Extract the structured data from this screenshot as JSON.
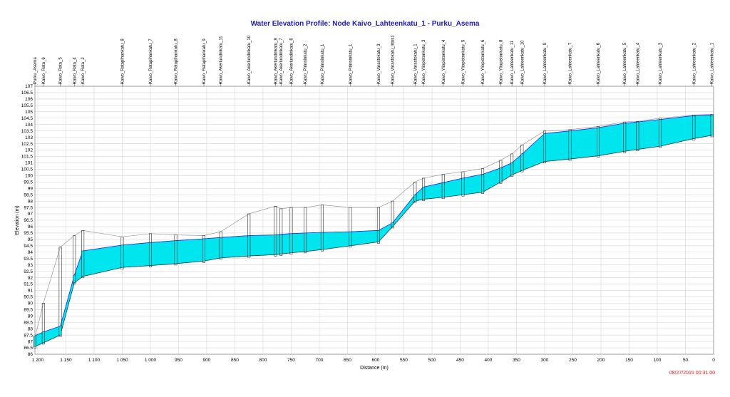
{
  "colors": {
    "title": "#1a1ad0",
    "hgl": "#2a2af0",
    "water": "#00e5ee",
    "grid": "#d6d6d6",
    "ground": "#9a9a9a",
    "stamp": "#e02020"
  },
  "chart_data": {
    "type": "area",
    "title": "Water Elevation Profile:  Node Kaivo_Lahteenkatu_1 - Purku_Asema",
    "xlabel": "Distance (m)",
    "ylabel": "Elevation (m)",
    "xlim": [
      1205,
      0
    ],
    "ylim": [
      86,
      107
    ],
    "x_ticks": [
      1200,
      1150,
      1100,
      1050,
      1000,
      950,
      900,
      850,
      800,
      750,
      700,
      650,
      600,
      550,
      500,
      450,
      400,
      350,
      300,
      250,
      200,
      150,
      100,
      50,
      0
    ],
    "x_tick_labels": [
      "1 200",
      "1 150",
      "1 100",
      "1 050",
      "1 000",
      "950",
      "900",
      "850",
      "800",
      "750",
      "700",
      "650",
      "600",
      "550",
      "500",
      "450",
      "400",
      "350",
      "300",
      "250",
      "200",
      "150",
      "100",
      "50",
      "0"
    ],
    "y_ticks": [
      86,
      86.5,
      87,
      87.5,
      88,
      88.5,
      89,
      89.5,
      90,
      90.5,
      91,
      91.5,
      92,
      92.5,
      93,
      93.5,
      94,
      94.5,
      95,
      95.5,
      96,
      96.5,
      97,
      97.5,
      98,
      98.5,
      99,
      99.5,
      100,
      100.5,
      101,
      101.5,
      102,
      102.5,
      103,
      103.5,
      104,
      104.5,
      105,
      105.5,
      106,
      106.5,
      107
    ],
    "y_tick_labels": [
      "86",
      "86.5",
      "87",
      "87.5",
      "88",
      "88.5",
      "89",
      "89.5",
      "90",
      "90.5",
      "91",
      "91.5",
      "92",
      "92.5",
      "93",
      "93.5",
      "94",
      "94.5",
      "95",
      "95.5",
      "96",
      "96.5",
      "97",
      "97.5",
      "98",
      "98.5",
      "99",
      "99.5",
      "100",
      "100.5",
      "101",
      "101.5",
      "102",
      "102.5",
      "103",
      "103.5",
      "104",
      "104.5",
      "105",
      "105.5",
      "106",
      "106.5",
      "107"
    ],
    "grid": true,
    "nodes": [
      {
        "name": "Purku_Asema",
        "x": 1205,
        "invert": 86.6,
        "ground": 87.3,
        "hgl": 87.45
      },
      {
        "name": "Kaivo_Rata_6",
        "x": 1190,
        "invert": 86.9,
        "ground": 90.0,
        "hgl": 87.75
      },
      {
        "name": "Kaivo_Rata_5",
        "x": 1160,
        "invert": 87.5,
        "ground": 94.4,
        "hgl": 88.2
      },
      {
        "name": "Kaivo_Rata_4",
        "x": 1135,
        "invert": 91.6,
        "ground": 95.3,
        "hgl": 92.2
      },
      {
        "name": "Kaivo_Rata_2",
        "x": 1120,
        "invert": 92.1,
        "ground": 95.7,
        "hgl": 94.1
      },
      {
        "name": "Kaivo_Ratapihankatu_8",
        "x": 1050,
        "invert": 92.8,
        "ground": 95.2,
        "hgl": 94.55
      },
      {
        "name": "Kaivo_Ratapihankatu_7",
        "x": 1000,
        "invert": 92.95,
        "ground": 95.45,
        "hgl": 94.75
      },
      {
        "name": "Kaivo_Ratapihankatu_8",
        "x": 955,
        "invert": 93.1,
        "ground": 95.35,
        "hgl": 94.9
      },
      {
        "name": "Kaivo_Ratapihankatu_9",
        "x": 905,
        "invert": 93.3,
        "ground": 95.3,
        "hgl": 95.05
      },
      {
        "name": "Kaivo_Akerlundinkatu_11",
        "x": 875,
        "invert": 93.55,
        "ground": 95.6,
        "hgl": 95.15
      },
      {
        "name": "Kaivo_Akerlundinkatu_10",
        "x": 825,
        "invert": 93.7,
        "ground": 97.0,
        "hgl": 95.3
      },
      {
        "name": "Kaivo_Akerlundinkatu_8",
        "x": 778,
        "invert": 93.8,
        "ground": 97.6,
        "hgl": 95.35
      },
      {
        "name": "Kaivo_Akerlundinkatu_7",
        "x": 768,
        "invert": 93.85,
        "ground": 97.4,
        "hgl": 95.4
      },
      {
        "name": "Kaivo_Akerlundinkatu_6",
        "x": 750,
        "invert": 93.95,
        "ground": 97.5,
        "hgl": 95.45
      },
      {
        "name": "Kaivo_Pirinninkatu_2",
        "x": 725,
        "invert": 94.05,
        "ground": 97.5,
        "hgl": 95.5
      },
      {
        "name": "Kaivo_Pirinninkatu_1",
        "x": 695,
        "invert": 94.2,
        "ground": 97.7,
        "hgl": 95.55
      },
      {
        "name": "Kaivo_Pirinninkatu_1",
        "x": 645,
        "invert": 94.5,
        "ground": 97.5,
        "hgl": 95.6
      },
      {
        "name": "Kaivo_Varastokatu_3",
        "x": 595,
        "invert": 94.8,
        "ground": 97.5,
        "hgl": 95.7
      },
      {
        "name": "Kaivo_Varastokatu_liitos1",
        "x": 570,
        "invert": 96.0,
        "ground": 98.0,
        "hgl": 96.3
      },
      {
        "name": "Kaivo_Varastokatu_1",
        "x": 530,
        "invert": 98.0,
        "ground": 99.5,
        "hgl": 98.5
      },
      {
        "name": "Kaivo_Yliopistonkatu_3",
        "x": 515,
        "invert": 98.15,
        "ground": 99.8,
        "hgl": 99.1
      },
      {
        "name": "Kaivo_Yliopistonkatu_4",
        "x": 480,
        "invert": 98.3,
        "ground": 100.1,
        "hgl": 99.45
      },
      {
        "name": "Kaivo_Yliopistonkatu_5",
        "x": 445,
        "invert": 98.5,
        "ground": 100.3,
        "hgl": 99.8
      },
      {
        "name": "Kaivo_Yliopistonkatu_6",
        "x": 410,
        "invert": 98.7,
        "ground": 100.55,
        "hgl": 100.1
      },
      {
        "name": "Kaivo_Yliopistonkatu_8",
        "x": 378,
        "invert": 99.5,
        "ground": 101.2,
        "hgl": 100.6
      },
      {
        "name": "Kaivo_Lahteenkatu_11",
        "x": 358,
        "invert": 100.05,
        "ground": 101.7,
        "hgl": 101.0
      },
      {
        "name": "Kaivo_Lahteenkatu_10",
        "x": 340,
        "invert": 100.4,
        "ground": 102.4,
        "hgl": 101.7
      },
      {
        "name": "Kaivo_Lahteenkatu_9",
        "x": 300,
        "invert": 101.1,
        "ground": 103.5,
        "hgl": 103.3
      },
      {
        "name": "Kaivo_Lahteenkatu_7",
        "x": 255,
        "invert": 101.3,
        "ground": 103.6,
        "hgl": 103.5
      },
      {
        "name": "Kaivo_Lahteenkatu_6",
        "x": 205,
        "invert": 101.55,
        "ground": 103.85,
        "hgl": 103.75
      },
      {
        "name": "Kaivo_Lahteenkatu_5",
        "x": 158,
        "invert": 101.9,
        "ground": 104.2,
        "hgl": 104.1
      },
      {
        "name": "Kaivo_Lahteenkatu_4",
        "x": 135,
        "invert": 102.05,
        "ground": 104.25,
        "hgl": 104.2
      },
      {
        "name": "Kaivo_Lahteenkatu_3",
        "x": 95,
        "invert": 102.3,
        "ground": 104.5,
        "hgl": 104.4
      },
      {
        "name": "Kaivo_Lahteenkatu_2",
        "x": 35,
        "invert": 102.9,
        "ground": 104.75,
        "hgl": 104.7
      },
      {
        "name": "Kaivo_Lahteenkatu_1",
        "x": 3,
        "invert": 103.15,
        "ground": 104.8,
        "hgl": 104.75
      }
    ]
  },
  "timestamp": "08/27/2015 00:31:00"
}
